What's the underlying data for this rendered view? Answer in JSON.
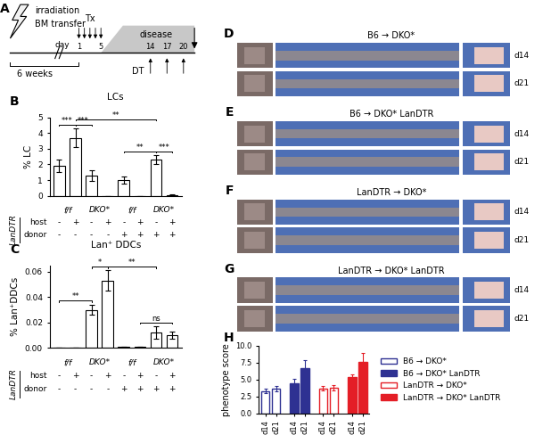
{
  "chart_data": [
    {
      "panel": "B",
      "type": "bar",
      "title": "LCs",
      "y_label": "% LC",
      "categories": [
        null,
        null,
        null,
        null,
        null,
        null,
        null,
        null
      ],
      "groups": [
        "f/f",
        "DKO*",
        "f/f",
        "DKO*"
      ],
      "row_names": [
        "host",
        "donor"
      ],
      "side_label": "LanDTR",
      "host": [
        "-",
        "+",
        "-",
        "+",
        "-",
        "+",
        "-",
        "+"
      ],
      "donor": [
        "-",
        "-",
        "-",
        "-",
        "+",
        "+",
        "+",
        "+"
      ],
      "values": [
        1.9,
        3.7,
        1.3,
        0.0,
        1.0,
        0.0,
        2.3,
        0.05
      ],
      "error": [
        0.4,
        0.6,
        0.35,
        0.0,
        0.25,
        0.0,
        0.3,
        0.02
      ],
      "color": "#ffffff",
      "ylim": [
        0,
        5
      ],
      "yticks": [
        0,
        1,
        2,
        3,
        4,
        5
      ],
      "significance": [
        {
          "from": 0,
          "to": 1,
          "label": "***"
        },
        {
          "from": 1,
          "to": 2,
          "label": "***"
        },
        {
          "from": 1,
          "to": 6,
          "label": "**"
        },
        {
          "from": 4,
          "to": 6,
          "label": "**"
        },
        {
          "from": 6,
          "to": 7,
          "label": "***"
        }
      ]
    },
    {
      "panel": "C",
      "type": "bar",
      "title": "Lan⁺ DDCs",
      "y_label": "% Lan⁺DDCs",
      "categories": [
        null,
        null,
        null,
        null,
        null,
        null,
        null,
        null
      ],
      "groups": [
        "f/f",
        "DKO*",
        "f/f",
        "DKO*"
      ],
      "row_names": [
        "host",
        "donor"
      ],
      "side_label": "LanDTR",
      "host": [
        "-",
        "+",
        "-",
        "+",
        "-",
        "+",
        "-",
        "+"
      ],
      "donor": [
        "-",
        "-",
        "-",
        "-",
        "+",
        "+",
        "+",
        "+"
      ],
      "values": [
        0.0005,
        0.0005,
        0.03,
        0.053,
        0.001,
        0.001,
        0.012,
        0.01
      ],
      "error": [
        0.0,
        0.0,
        0.004,
        0.008,
        0.0,
        0.0,
        0.005,
        0.003
      ],
      "color": "#ffffff",
      "ylim": [
        0,
        0.065
      ],
      "yticks": [
        {
          "value": 0,
          "label": "0.00"
        },
        0.02,
        0.04,
        0.06
      ],
      "significance": [
        {
          "from": 0,
          "to": 2,
          "label": "**"
        },
        {
          "from": 2,
          "to": 3,
          "label": "*"
        },
        {
          "from": 3,
          "to": 6,
          "label": "**"
        },
        {
          "from": 5,
          "to": 7,
          "label": "ns"
        }
      ]
    },
    {
      "panel": "H",
      "type": "bar",
      "y_label": "phenotype score",
      "categories": [
        "d14",
        "d21"
      ],
      "ylim": [
        0,
        10
      ],
      "yticks": [
        {
          "value": 0,
          "label": "0.0"
        },
        2.5,
        {
          "value": 5,
          "label": "5.0"
        },
        7.5,
        {
          "value": 10,
          "label": "10.0"
        }
      ],
      "legend": "center left",
      "series": [
        {
          "name": "B6 → DKO*",
          "color": "#2e3192",
          "marker": "open",
          "values": [
            3.3,
            3.7
          ],
          "error": [
            0.3,
            0.4
          ]
        },
        {
          "name": "B6 → DKO* LanDTR",
          "color": "#2e3192",
          "marker": "filled",
          "values": [
            4.5,
            6.7
          ],
          "error": [
            0.6,
            1.2
          ]
        },
        {
          "name": "LanDTR → DKO*",
          "color": "#e41e26",
          "marker": "open",
          "values": [
            3.7,
            3.8
          ],
          "error": [
            0.3,
            0.4
          ]
        },
        {
          "name": "LanDTR → DKO* LanDTR",
          "color": "#e41e26",
          "marker": "filled",
          "values": [
            5.4,
            7.6
          ],
          "error": [
            0.4,
            1.3
          ]
        }
      ]
    }
  ],
  "diagram": {
    "panel": "A",
    "event": [
      "irradiation",
      "BM transfer"
    ],
    "interval": "6 weeks",
    "day_label": "day",
    "treatment": {
      "label": "Tx",
      "days": [
        1,
        5
      ]
    },
    "phase": "disease",
    "toxin": {
      "label": "DT",
      "days": [
        14,
        17,
        20
      ]
    }
  },
  "photo_panels": [
    {
      "panel": "D",
      "caption": "B6 → DKO*",
      "days": [
        "d14",
        "d21"
      ]
    },
    {
      "panel": "E",
      "caption": "B6 → DKO* LanDTR",
      "days": [
        "d14",
        "d21"
      ]
    },
    {
      "panel": "F",
      "caption": "LanDTR → DKO*",
      "days": [
        "d14",
        "d21"
      ]
    },
    {
      "panel": "G",
      "caption": "LanDTR → DKO* LanDTR",
      "days": [
        "d14",
        "d21"
      ]
    }
  ]
}
